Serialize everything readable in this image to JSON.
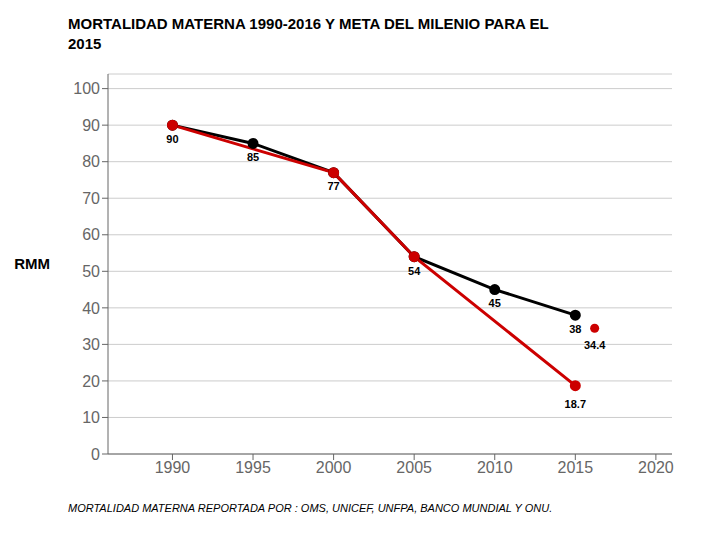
{
  "chart_data": {
    "type": "line",
    "title": "MORTALIDAD MATERNA 1990-2016 Y META DEL MILENIO PARA EL\n2015",
    "ylabel": "RMM",
    "footnote": "MORTALIDAD MATERNA REPORTADA POR : OMS, UNICEF, UNFPA, BANCO MUNDIAL Y ONU.",
    "series": [
      {
        "x": [
          1990,
          1995,
          2000,
          2005,
          2010,
          2015
        ],
        "values": [
          90,
          85,
          77,
          54,
          45,
          38
        ],
        "color": "#000000",
        "marker": "o",
        "data_labels": true
      },
      {
        "x": [
          1990,
          2000,
          2005,
          2015
        ],
        "values": [
          90,
          77,
          54,
          18.7
        ],
        "color": "#cc0000",
        "marker": "o"
      },
      {
        "type": "scatter",
        "x": [
          2016.2
        ],
        "values": [
          34.4
        ],
        "color": "#cc0000",
        "marker": "o",
        "data_labels": true
      }
    ],
    "annotations": [
      {
        "text": "18.7",
        "x": 2015,
        "y": 18.7
      }
    ],
    "xlim": [
      1986,
      2021
    ],
    "ylim": [
      0,
      104
    ],
    "xticks": [
      1990,
      1995,
      2000,
      2005,
      2010,
      2015,
      2020
    ],
    "yticks": [
      0,
      10,
      20,
      30,
      40,
      50,
      60,
      70,
      80,
      90,
      100
    ],
    "grid": true
  }
}
